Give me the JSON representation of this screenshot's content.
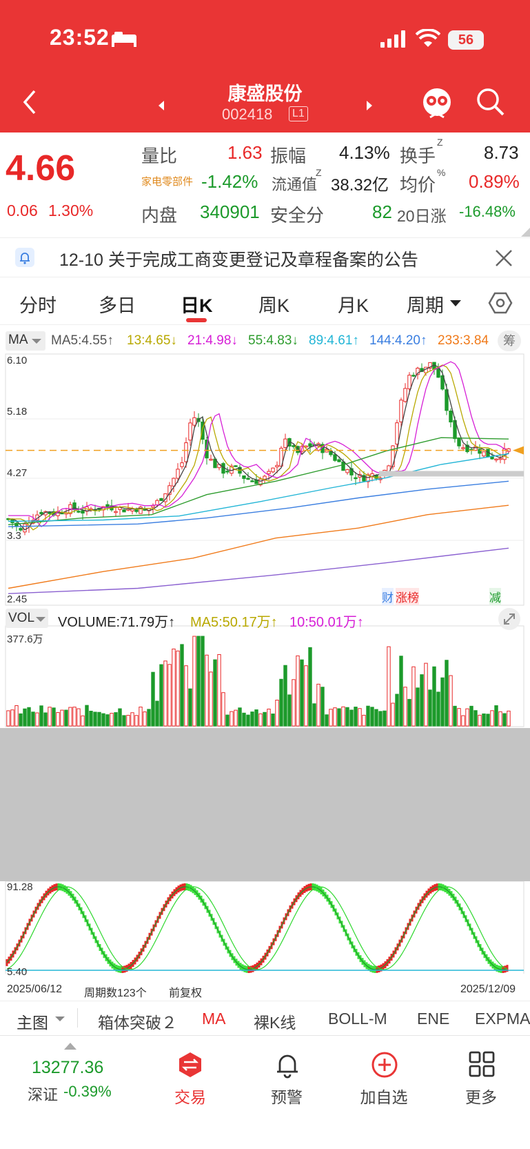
{
  "status_bar": {
    "time": "23:52",
    "battery": "56"
  },
  "header": {
    "title": "康盛股份",
    "code": "002418",
    "level": "L1"
  },
  "quote": {
    "price": "4.66",
    "change": "0.06",
    "change_pct": "1.30%",
    "vol_ratio_label": "量比",
    "vol_ratio": "1.63",
    "amplitude_label": "振幅",
    "amplitude": "4.13%",
    "turnover_label": "换手",
    "turnover_sup": "Z",
    "turnover": "8.73",
    "sector_label": "家电零部件",
    "sector_pct": "-1.42%",
    "float_cap_label": "流通值",
    "float_cap_sup": "Z",
    "float_cap": "38.32亿",
    "avg_price_label": "均价",
    "avg_price_sup": "%",
    "avg_price": "0.89%",
    "inner_label": "内盘",
    "inner": "340901",
    "safety_label": "安全分",
    "safety": "82",
    "rise20_label": "20日涨",
    "rise20": "-16.48%"
  },
  "notice": {
    "text": "12-10 关于完成工商变更登记及章程备案的公告"
  },
  "tabs": [
    "分时",
    "多日",
    "日K",
    "周K",
    "月K",
    "周期"
  ],
  "active_tab": "日K",
  "ma_bar": {
    "selector": "MA",
    "items": [
      {
        "text": "MA5:4.55↑",
        "color": "#555555"
      },
      {
        "text": "13:4.65↓",
        "color": "#b8a800"
      },
      {
        "text": "21:4.98↓",
        "color": "#d61fd6"
      },
      {
        "text": "55:4.83↓",
        "color": "#2e9c2e"
      },
      {
        "text": "89:4.61↑",
        "color": "#22b5d6"
      },
      {
        "text": "144:4.20↑",
        "color": "#3a7ee0"
      },
      {
        "text": "233:3.84",
        "color": "#f07a1a"
      }
    ],
    "chip_label": "筹"
  },
  "kline_axis": {
    "top": "6.10",
    "mid1": "5.18",
    "mid2": "4.27",
    "low": "3.3",
    "bottom": "2.45"
  },
  "kline_tags": {
    "cai": "财",
    "zhang": "涨",
    "bang": "榜",
    "jian": "减"
  },
  "vol_bar": {
    "selector": "VOL",
    "items": [
      {
        "text": "VOLUME:71.79万↑",
        "color": "#333333"
      },
      {
        "text": "MA5:50.17万↑",
        "color": "#b8a800"
      },
      {
        "text": "10:50.01万↑",
        "color": "#d61fd6"
      }
    ],
    "axis_top": "377.6万"
  },
  "osc_axis": {
    "top": "91.28",
    "bottom": "5.40"
  },
  "date_row": {
    "start": "2025/06/12",
    "periods": "周期数123个",
    "adj": "前复权",
    "end": "2025/12/09"
  },
  "indicators": [
    "主图",
    "箱体突破２",
    "MA",
    "裸K线",
    "BOLL-M",
    "ENE",
    "EXPMA"
  ],
  "bottom_nav": {
    "index_value": "13277.36",
    "index_name": "深证",
    "index_pct": "-0.39%",
    "trade": "交易",
    "alert": "预警",
    "add": "加自选",
    "more": "更多"
  },
  "colors": {
    "brand": "#e93535",
    "up": "#e82828",
    "down": "#1c9a2b"
  }
}
